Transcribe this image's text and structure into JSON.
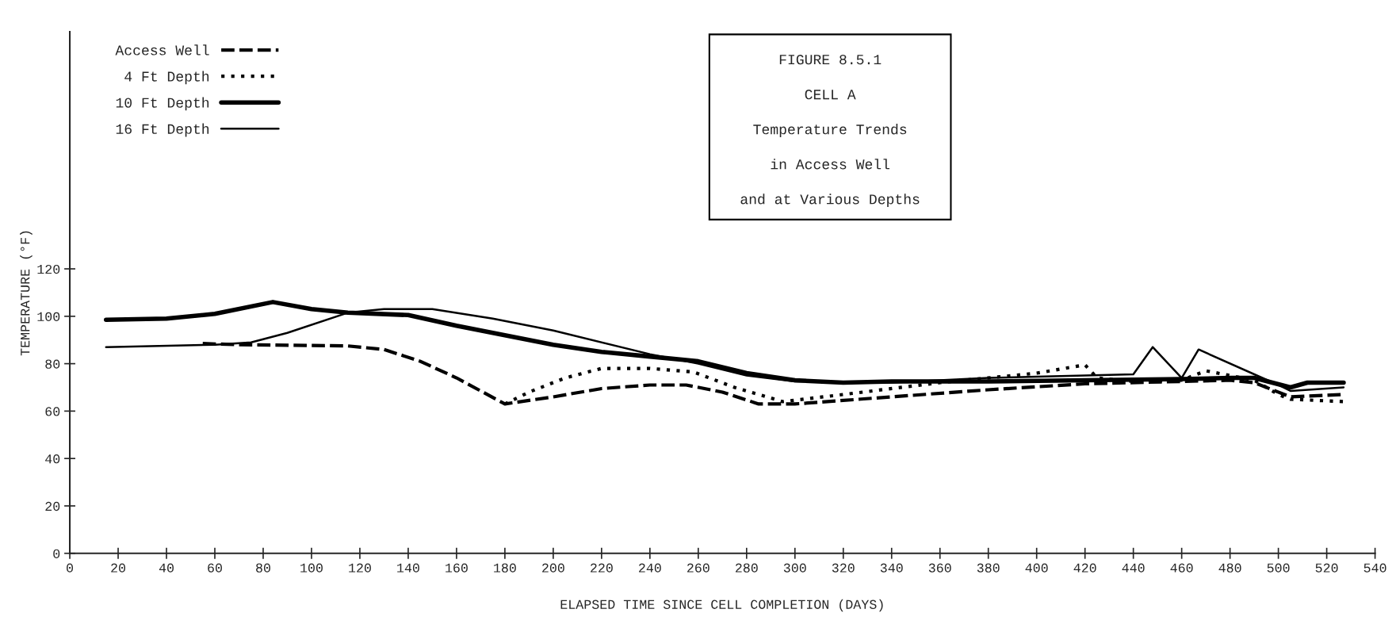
{
  "chart_data": {
    "type": "line",
    "title": "FIGURE 8.5.1",
    "subtitle": "CELL A",
    "annotations": [
      "Temperature Trends",
      "in Access Well",
      "and at Various Depths"
    ],
    "xlabel": "ELAPSED TIME SINCE CELL COMPLETION (DAYS)",
    "ylabel": "TEMPERATURE (°F)",
    "xlim": [
      0,
      540
    ],
    "xticks": [
      0,
      20,
      40,
      60,
      80,
      100,
      120,
      140,
      160,
      180,
      200,
      220,
      240,
      260,
      280,
      300,
      320,
      340,
      360,
      380,
      400,
      420,
      440,
      460,
      480,
      500,
      520,
      540
    ],
    "ylim": [
      0,
      220
    ],
    "yticks": [
      0,
      20,
      40,
      60,
      80,
      100,
      120
    ],
    "grid": false,
    "legend": "top left",
    "series": [
      {
        "name": "Access Well",
        "color": "#000000",
        "line_style": "dashed",
        "x": [
          55,
          70,
          115,
          130,
          145,
          160,
          180,
          200,
          220,
          240,
          255,
          270,
          285,
          300,
          340,
          380,
          420,
          460,
          480,
          490,
          505,
          527
        ],
        "values": [
          88.5,
          88,
          87.5,
          86,
          81,
          74,
          63,
          66,
          69.5,
          71,
          71,
          68,
          63,
          63,
          66,
          69,
          71.5,
          72.5,
          73,
          72,
          66,
          67
        ]
      },
      {
        "name": "4 Ft Depth",
        "color": "#000000",
        "line_style": "dotted",
        "x": [
          180,
          190,
          205,
          220,
          240,
          258,
          275,
          295,
          320,
          360,
          400,
          420,
          425,
          440,
          460,
          470,
          480,
          490,
          500,
          505,
          527
        ],
        "values": [
          63,
          68,
          74,
          78,
          78,
          76.5,
          70,
          64,
          67,
          72,
          76,
          79.5,
          74,
          72.5,
          73,
          77,
          75,
          73,
          67,
          65,
          64
        ]
      },
      {
        "name": "10 Ft Depth",
        "color": "#000000",
        "line_style": "solid",
        "x": [
          15,
          40,
          60,
          84,
          100,
          115,
          140,
          160,
          200,
          220,
          240,
          260,
          280,
          300,
          320,
          340,
          380,
          420,
          460,
          480,
          490,
          505,
          512,
          527
        ],
        "values": [
          98.5,
          99,
          101,
          106,
          103,
          101.5,
          100.5,
          96,
          88,
          85,
          83,
          81,
          76,
          73,
          72,
          72.5,
          72.5,
          73,
          73.5,
          74,
          74,
          70,
          72,
          72
        ]
      },
      {
        "name": "16 Ft Depth",
        "color": "#000000",
        "line_style": "solid",
        "x": [
          15,
          60,
          75,
          90,
          115,
          130,
          150,
          175,
          200,
          240,
          260,
          280,
          300,
          340,
          360,
          380,
          400,
          440,
          448,
          460,
          467,
          500,
          505,
          527
        ],
        "values": [
          87,
          88,
          89,
          93,
          101.5,
          103,
          103,
          99,
          94,
          84,
          80,
          75,
          72.5,
          72,
          73,
          74,
          74.5,
          75.5,
          87,
          74,
          86,
          71,
          68.5,
          70
        ]
      }
    ]
  }
}
